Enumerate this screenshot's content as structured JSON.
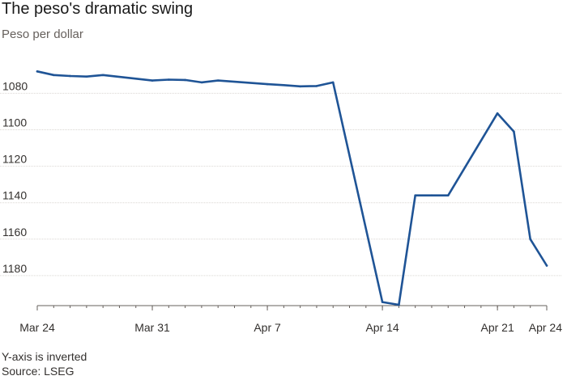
{
  "title": "The peso's dramatic swing",
  "subtitle": "Peso per dollar",
  "footnote": {
    "line1": "Y-axis is inverted",
    "line2": "Source: LSEG"
  },
  "colors": {
    "line": "#1f5496",
    "grid": "#d9d6d2",
    "axis": "#66605c"
  },
  "chart_data": {
    "type": "line",
    "title": "The peso's dramatic swing",
    "ylabel": "Peso per dollar",
    "xlabel": "",
    "y_inverted": true,
    "ylim": [
      1190,
      1060
    ],
    "xlim": [
      "2025-03-24",
      "2025-04-24"
    ],
    "y_ticks": [
      1080,
      1100,
      1120,
      1140,
      1160,
      1180
    ],
    "x_ticks": [
      {
        "date": "2025-03-24",
        "label": "Mar 24"
      },
      {
        "date": "2025-03-31",
        "label": "Mar 31"
      },
      {
        "date": "2025-04-07",
        "label": "Apr 7"
      },
      {
        "date": "2025-04-14",
        "label": "Apr 14"
      },
      {
        "date": "2025-04-21",
        "label": "Apr 21"
      },
      {
        "date": "2025-04-24",
        "label": "Apr 24"
      }
    ],
    "grid": true,
    "series": [
      {
        "x": [
          "2025-03-24",
          "2025-03-25",
          "2025-03-26",
          "2025-03-27",
          "2025-03-28",
          "2025-03-31",
          "2025-04-01",
          "2025-04-02",
          "2025-04-03",
          "2025-04-04",
          "2025-04-07",
          "2025-04-08",
          "2025-04-09",
          "2025-04-10",
          "2025-04-11",
          "2025-04-14",
          "2025-04-15",
          "2025-04-16",
          "2025-04-17",
          "2025-04-18",
          "2025-04-21",
          "2025-04-22",
          "2025-04-23",
          "2025-04-24"
        ],
        "values": [
          1068,
          1070,
          1070.5,
          1070.8,
          1070,
          1073,
          1072.5,
          1072.7,
          1074,
          1073,
          1075,
          1075.5,
          1076.2,
          1076,
          1074,
          1194.5,
          1196,
          1136,
          1136,
          1136,
          1091,
          1101,
          1160,
          1174.5
        ]
      }
    ]
  }
}
